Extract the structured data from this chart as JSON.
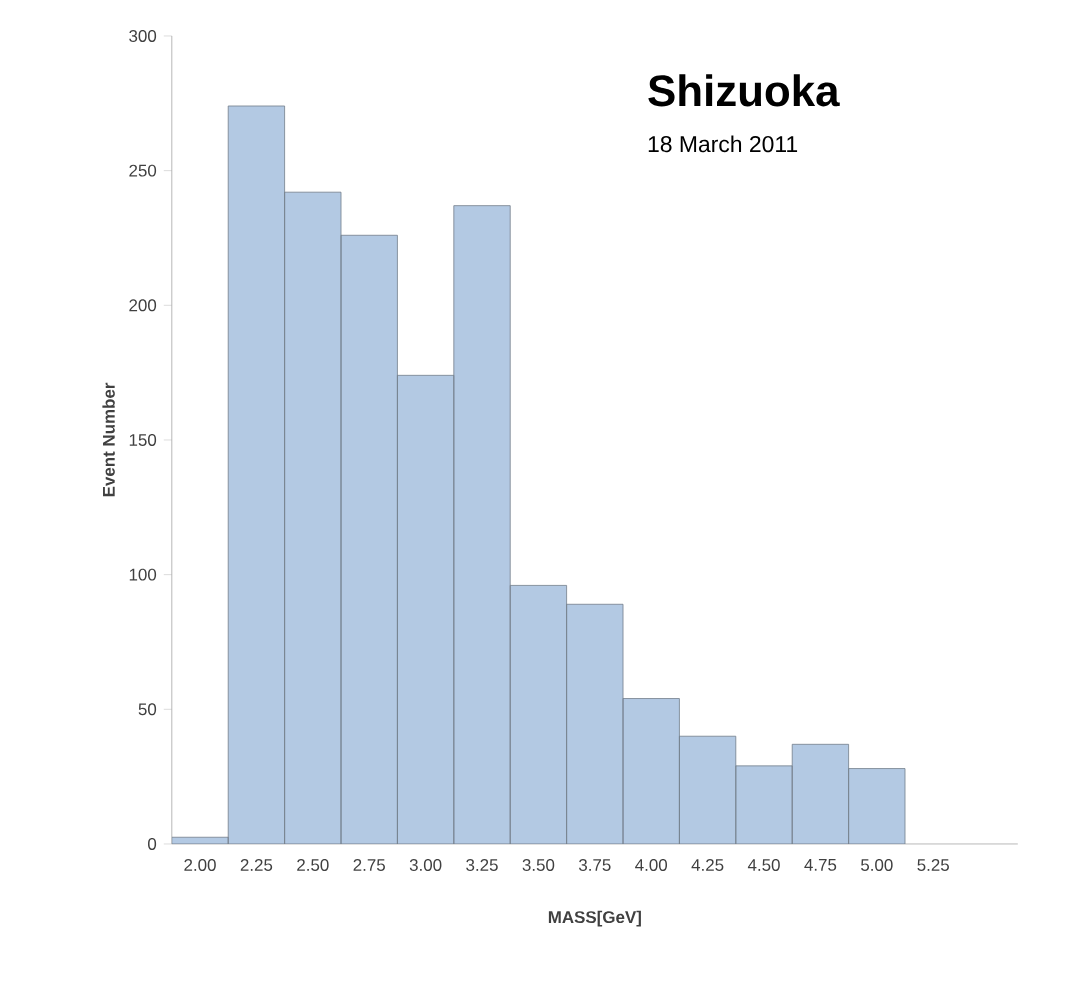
{
  "chart_data": {
    "type": "bar",
    "title": "Shizuoka",
    "subtitle": "18 March 2011",
    "xlabel": "MASS[GeV]",
    "ylabel": "Event Number",
    "categories": [
      "2.00",
      "2.25",
      "2.50",
      "2.75",
      "3.00",
      "3.25",
      "3.50",
      "3.75",
      "4.00",
      "4.25",
      "4.50",
      "4.75",
      "5.00",
      "5.25",
      null
    ],
    "values": [
      2.5,
      274,
      242,
      226,
      174,
      237,
      96,
      89,
      54,
      40,
      29,
      37,
      28,
      null,
      null
    ],
    "color": "#b3c9e3",
    "ylim": [
      0,
      300
    ],
    "yticks": [
      0,
      50,
      100,
      150,
      200,
      250,
      300
    ]
  }
}
